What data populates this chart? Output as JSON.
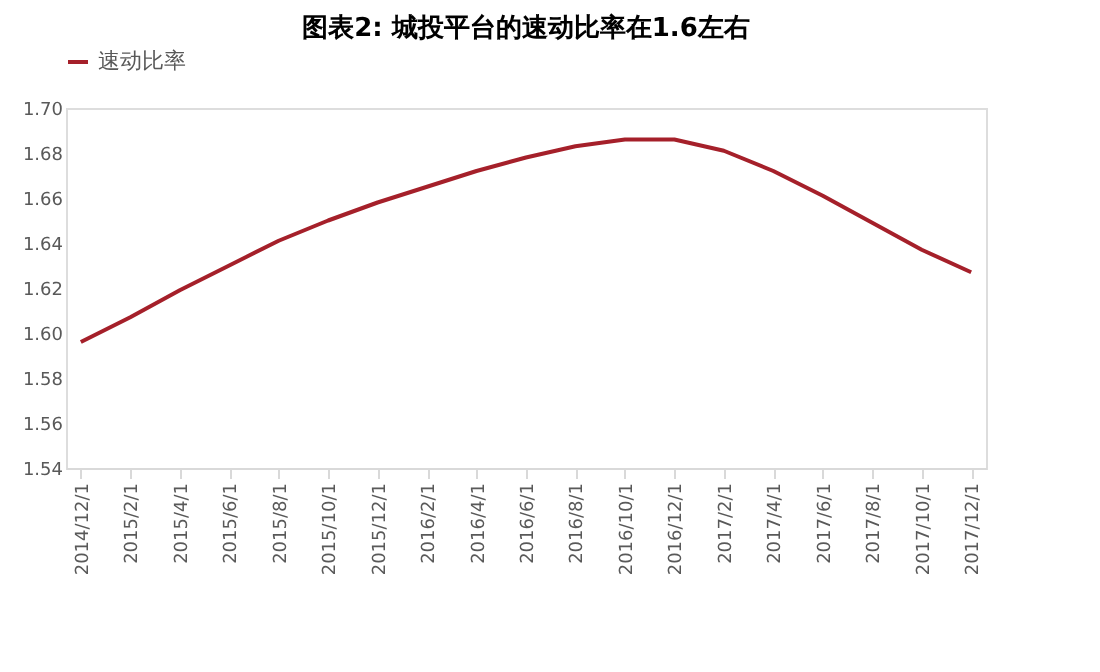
{
  "chart_data": {
    "type": "line",
    "title": "图表2:  城投平台的速动比率在1.6左右",
    "categories": [
      "2014/12/1",
      "2015/2/1",
      "2015/4/1",
      "2015/6/1",
      "2015/8/1",
      "2015/10/1",
      "2015/12/1",
      "2016/2/1",
      "2016/4/1",
      "2016/6/1",
      "2016/8/1",
      "2016/10/1",
      "2016/12/1",
      "2017/2/1",
      "2017/4/1",
      "2017/6/1",
      "2017/8/1",
      "2017/10/1",
      "2017/12/1"
    ],
    "series": [
      {
        "name": "速动比率",
        "color": "#a5202a",
        "values": [
          1.596,
          1.607,
          1.619,
          1.63,
          1.641,
          1.65,
          1.658,
          1.665,
          1.672,
          1.678,
          1.683,
          1.686,
          1.686,
          1.681,
          1.672,
          1.661,
          1.649,
          1.637,
          1.627
        ]
      }
    ],
    "ylim": [
      1.54,
      1.7
    ],
    "yticks": [
      {
        "value": 1.54,
        "label": "1.54"
      },
      {
        "value": 1.56,
        "label": "1.56"
      },
      {
        "value": 1.58,
        "label": "1.58"
      },
      {
        "value": 1.6,
        "label": "1.60"
      },
      {
        "value": 1.62,
        "label": "1.62"
      },
      {
        "value": 1.64,
        "label": "1.64"
      },
      {
        "value": 1.66,
        "label": "1.66"
      },
      {
        "value": 1.68,
        "label": "1.68"
      },
      {
        "value": 1.7,
        "label": "1.70"
      }
    ],
    "grid": false,
    "legend": "top",
    "marker": "none",
    "line_style": "solid"
  }
}
